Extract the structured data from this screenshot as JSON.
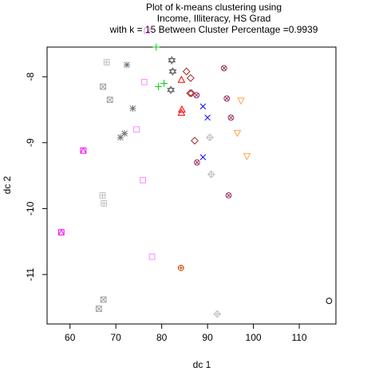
{
  "chart_data": {
    "type": "scatter",
    "title_lines": [
      "Plot of k-means clustering using",
      "Income, Illiteracy, HS Grad",
      "with  k = 15 Between Cluster Percentage =0.9939"
    ],
    "xlabel": "dc 1",
    "ylabel": "dc 2",
    "xlim": [
      55,
      118
    ],
    "ylim": [
      -11.75,
      -7.55
    ],
    "x_ticks": [
      60,
      70,
      80,
      90,
      100,
      110
    ],
    "y_ticks": [
      -8,
      -9,
      -10,
      -11
    ],
    "grid": false,
    "legend": "none",
    "series": [
      {
        "cluster": 1,
        "marker": "circle",
        "color": "#000000",
        "points": [
          [
            116.5,
            -11.4
          ]
        ]
      },
      {
        "cluster": 2,
        "marker": "triangle",
        "color": "#ff0000",
        "points": [
          [
            84.3,
            -8.05
          ],
          [
            84.4,
            -8.5
          ],
          [
            84.3,
            -8.55
          ]
        ]
      },
      {
        "cluster": 3,
        "marker": "plus",
        "color": "#00cc00",
        "points": [
          [
            78.8,
            -7.55
          ],
          [
            80.5,
            -8.1
          ],
          [
            79.3,
            -8.15
          ]
        ]
      },
      {
        "cluster": 4,
        "marker": "x",
        "color": "#0000ff",
        "points": [
          [
            89.0,
            -8.45
          ],
          [
            90.0,
            -8.62
          ],
          [
            89.0,
            -9.22
          ]
        ]
      },
      {
        "cluster": 5,
        "marker": "diamond",
        "color": "#a52a2a",
        "points": [
          [
            85.4,
            -7.92
          ],
          [
            86.3,
            -8.02
          ],
          [
            86.2,
            -8.25
          ],
          [
            86.5,
            -8.25
          ],
          [
            87.2,
            -8.97
          ]
        ]
      },
      {
        "cluster": 6,
        "marker": "inverted-triangle",
        "color": "#ffa54f",
        "points": [
          [
            97.3,
            -8.36
          ],
          [
            96.5,
            -8.85
          ],
          [
            98.6,
            -9.2
          ]
        ]
      },
      {
        "cluster": 7,
        "marker": "boxed-x",
        "color": "#a0a0a0",
        "points": [
          [
            67.2,
            -8.15
          ],
          [
            68.7,
            -8.35
          ],
          [
            66.3,
            -11.52
          ],
          [
            67.3,
            -11.38
          ]
        ]
      },
      {
        "cluster": 8,
        "marker": "asterisk",
        "color": "#707070",
        "points": [
          [
            72.4,
            -7.82
          ],
          [
            73.7,
            -8.48
          ],
          [
            71.9,
            -8.86
          ],
          [
            71.0,
            -8.92
          ]
        ]
      },
      {
        "cluster": 9,
        "marker": "diamond-plus",
        "color": "#c0c0c0",
        "points": [
          [
            90.5,
            -8.92
          ],
          [
            90.8,
            -9.48
          ],
          [
            92.1,
            -11.6
          ]
        ]
      },
      {
        "cluster": 10,
        "marker": "circle-plus",
        "color": "#c85000",
        "points": [
          [
            84.2,
            -10.9
          ]
        ]
      },
      {
        "cluster": 11,
        "marker": "star-of-david",
        "color": "#606060",
        "points": [
          [
            82.2,
            -7.75
          ],
          [
            82.4,
            -7.92
          ],
          [
            82.0,
            -8.2
          ]
        ]
      },
      {
        "cluster": 12,
        "marker": "square-plus",
        "color": "#c0c0c0",
        "points": [
          [
            68.0,
            -7.78
          ],
          [
            67.1,
            -9.8
          ],
          [
            67.4,
            -9.92
          ]
        ]
      },
      {
        "cluster": 13,
        "marker": "circle-x",
        "color": "#993366",
        "points": [
          [
            87.6,
            -8.28
          ],
          [
            87.7,
            -9.3
          ],
          [
            93.6,
            -7.87
          ],
          [
            94.2,
            -8.33
          ],
          [
            95.1,
            -8.62
          ],
          [
            94.6,
            -9.8
          ]
        ]
      },
      {
        "cluster": 14,
        "marker": "square-triangle",
        "color": "#ff00ff",
        "points": [
          [
            62.9,
            -9.12
          ],
          [
            58.1,
            -10.36
          ]
        ]
      },
      {
        "cluster": 15,
        "marker": "square",
        "color": "#ff88ff",
        "points": [
          [
            76.8,
            -7.3
          ],
          [
            76.2,
            -8.08
          ],
          [
            74.5,
            -8.8
          ],
          [
            75.9,
            -9.57
          ],
          [
            77.9,
            -10.73
          ]
        ]
      }
    ]
  }
}
